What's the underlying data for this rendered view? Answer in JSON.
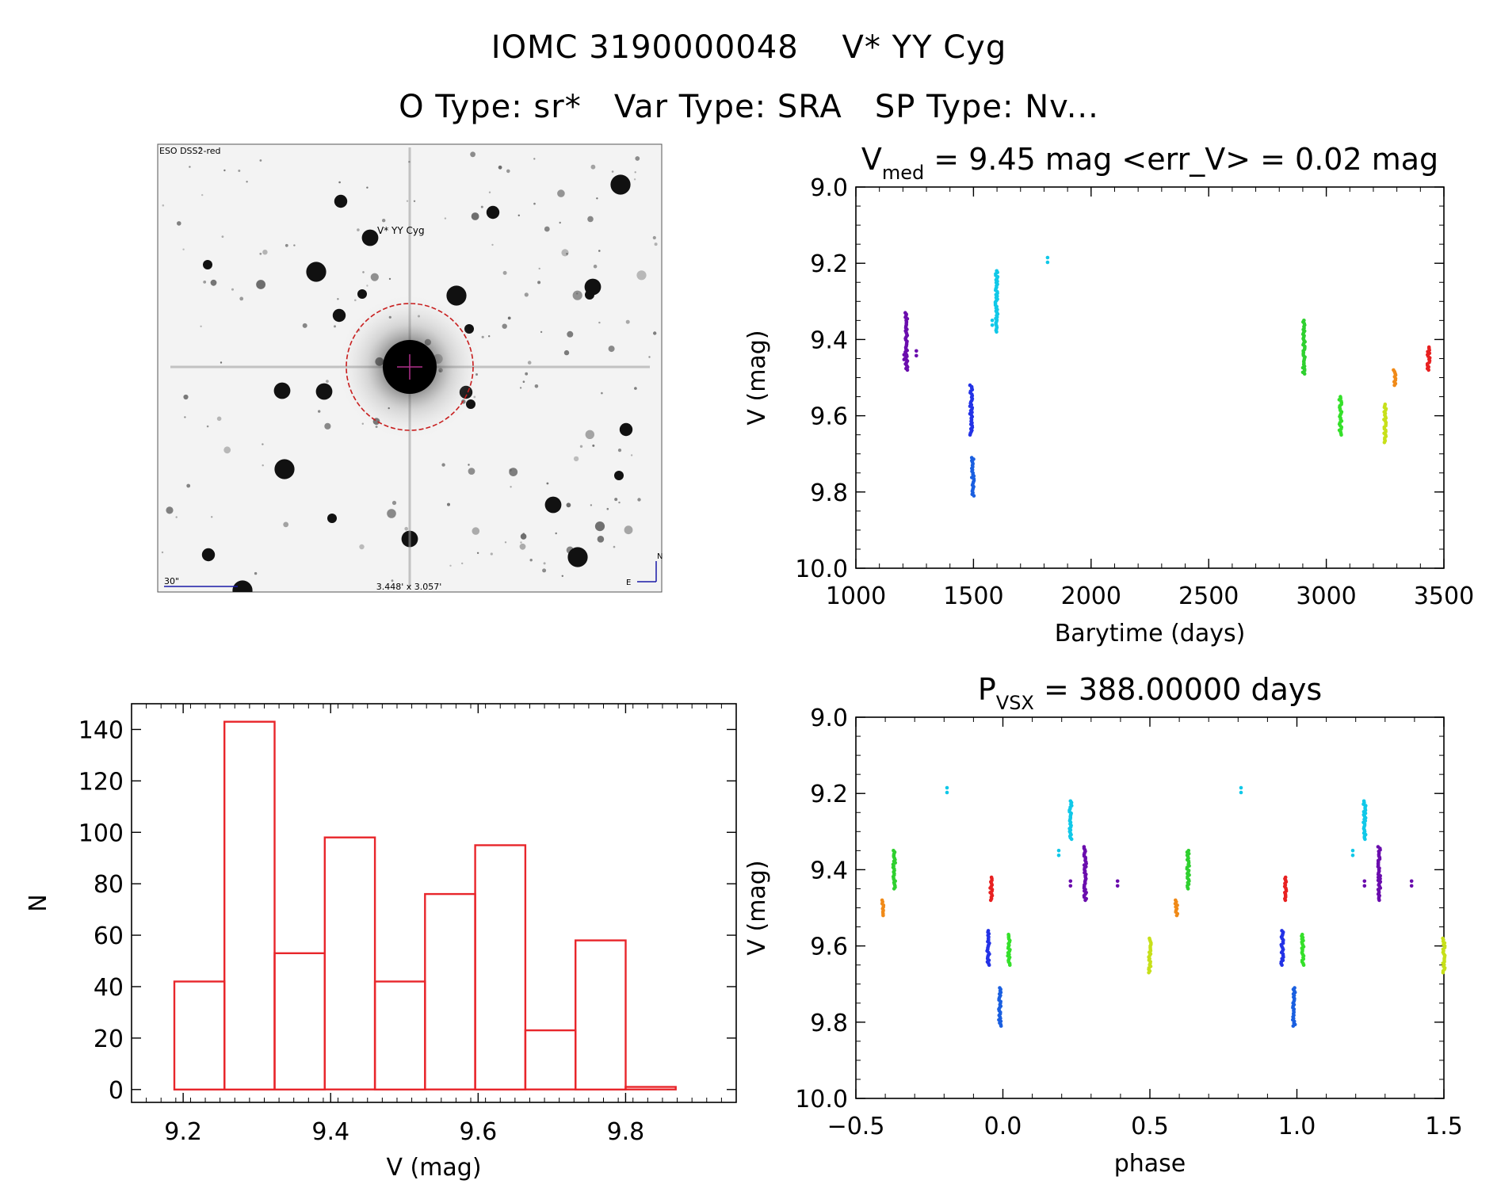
{
  "header": {
    "title": "IOMC 3190000048    V* YY Cyg",
    "subtitle": "O Type: sr*   Var Type: SRA   SP Type: Nv..."
  },
  "finder": {
    "survey_label": "ESO DSS2-red",
    "target_label": "V* YY Cyg",
    "scale_label": "30\"",
    "fov_label": "3.448' x 3.057'",
    "north_label": "N",
    "east_label": "E"
  },
  "colors": {
    "histogram": "#e8262b",
    "finder_circle": "#c81e1e",
    "finder_text": "#1a1aa8"
  },
  "chart_data": [
    {
      "id": "lightcurve",
      "type": "scatter",
      "title": {
        "main": "V",
        "sub": "med",
        "rest": " = 9.45 mag <err_V> = 0.02 mag"
      },
      "xlabel": "Barytime (days)",
      "ylabel": "V (mag)",
      "xlim": [
        1000,
        3500
      ],
      "ylim": [
        10.0,
        9.0
      ],
      "y_inverted": true,
      "xticks": [
        1000,
        1500,
        2000,
        2500,
        3000,
        3500
      ],
      "xtick_labels": [
        "1000",
        "1500",
        "2000",
        "2500",
        "3000",
        "3500"
      ],
      "yticks": [
        9.0,
        9.2,
        9.4,
        9.6,
        9.8,
        10.0
      ],
      "ytick_labels": [
        "9.0",
        "9.2",
        "9.4",
        "9.6",
        "9.8",
        "10.0"
      ],
      "series": [
        {
          "color": "#6a0dad",
          "x": 1215,
          "y_min": 9.33,
          "y_max": 9.48,
          "extra": [
            [
              1205,
              9.44
            ],
            [
              1257,
              9.43
            ]
          ]
        },
        {
          "color": "#2332e6",
          "x": 1490,
          "y_min": 9.52,
          "y_max": 9.65,
          "extra": []
        },
        {
          "color": "#1a5fe0",
          "x": 1497,
          "y_min": 9.71,
          "y_max": 9.81,
          "extra": []
        },
        {
          "color": "#10c8e8",
          "x": 1598,
          "y_min": 9.22,
          "y_max": 9.38,
          "extra": [
            [
              1580,
              9.35
            ],
            [
              1815,
              9.185
            ]
          ]
        },
        {
          "color": "#2fd02f",
          "x": 2905,
          "y_min": 9.35,
          "y_max": 9.49,
          "extra": []
        },
        {
          "color": "#35e02a",
          "x": 3060,
          "y_min": 9.55,
          "y_max": 9.65,
          "extra": []
        },
        {
          "color": "#c7e01a",
          "x": 3250,
          "y_min": 9.57,
          "y_max": 9.67,
          "extra": []
        },
        {
          "color": "#f08a18",
          "x": 3290,
          "y_min": 9.48,
          "y_max": 9.52,
          "extra": []
        },
        {
          "color": "#e82020",
          "x": 3435,
          "y_min": 9.42,
          "y_max": 9.48,
          "extra": []
        }
      ]
    },
    {
      "id": "histogram",
      "type": "bar",
      "xlabel": "V (mag)",
      "ylabel": "N",
      "xlim": [
        9.13,
        9.95
      ],
      "ylim": [
        -5,
        150
      ],
      "xticks": [
        9.2,
        9.4,
        9.6,
        9.8
      ],
      "xtick_labels": [
        "9.2",
        "9.4",
        "9.6",
        "9.8"
      ],
      "yticks": [
        0,
        20,
        40,
        60,
        80,
        100,
        120,
        140
      ],
      "ytick_labels": [
        "0",
        "20",
        "40",
        "60",
        "80",
        "100",
        "120",
        "140"
      ],
      "bin_edges": [
        9.188,
        9.256,
        9.324,
        9.392,
        9.46,
        9.528,
        9.596,
        9.664,
        9.732,
        9.8,
        9.868
      ],
      "values": [
        42,
        143,
        53,
        98,
        42,
        76,
        95,
        23,
        58,
        1
      ]
    },
    {
      "id": "phased",
      "type": "scatter",
      "title": {
        "main": "P",
        "sub": "VSX",
        "rest": " = 388.00000 days"
      },
      "xlabel": "phase",
      "ylabel": "V (mag)",
      "xlim": [
        -0.5,
        1.5
      ],
      "ylim": [
        10.0,
        9.0
      ],
      "y_inverted": true,
      "xticks": [
        -0.5,
        0.0,
        0.5,
        1.0,
        1.5
      ],
      "xtick_labels": [
        "−0.5",
        "0.0",
        "0.5",
        "1.0",
        "1.5"
      ],
      "yticks": [
        9.0,
        9.2,
        9.4,
        9.6,
        9.8,
        10.0
      ],
      "ytick_labels": [
        "9.0",
        "9.2",
        "9.4",
        "9.6",
        "9.8",
        "10.0"
      ],
      "series": [
        {
          "color": "#6a0dad",
          "x": 0.28,
          "y_min": 9.34,
          "y_max": 9.48,
          "extra": [
            [
              0.23,
              9.43
            ],
            [
              0.39,
              9.43
            ]
          ]
        },
        {
          "color": "#2332e6",
          "x": -0.05,
          "y_min": 9.56,
          "y_max": 9.65,
          "extra": []
        },
        {
          "color": "#1a5fe0",
          "x": -0.01,
          "y_min": 9.71,
          "y_max": 9.81,
          "extra": []
        },
        {
          "color": "#10c8e8",
          "x": 0.23,
          "y_min": 9.22,
          "y_max": 9.32,
          "extra": [
            [
              0.19,
              9.35
            ],
            [
              -0.19,
              9.185
            ]
          ]
        },
        {
          "color": "#2fd02f",
          "x": -0.37,
          "y_min": 9.35,
          "y_max": 9.45,
          "extra": []
        },
        {
          "color": "#35e02a",
          "x": 0.02,
          "y_min": 9.57,
          "y_max": 9.65,
          "extra": []
        },
        {
          "color": "#c7e01a",
          "x": 0.5,
          "y_min": 9.58,
          "y_max": 9.67,
          "extra": []
        },
        {
          "color": "#f08a18",
          "x": -0.41,
          "y_min": 9.48,
          "y_max": 9.52,
          "extra": []
        },
        {
          "color": "#e82020",
          "x": -0.04,
          "y_min": 9.42,
          "y_max": 9.48,
          "extra": []
        }
      ]
    }
  ]
}
